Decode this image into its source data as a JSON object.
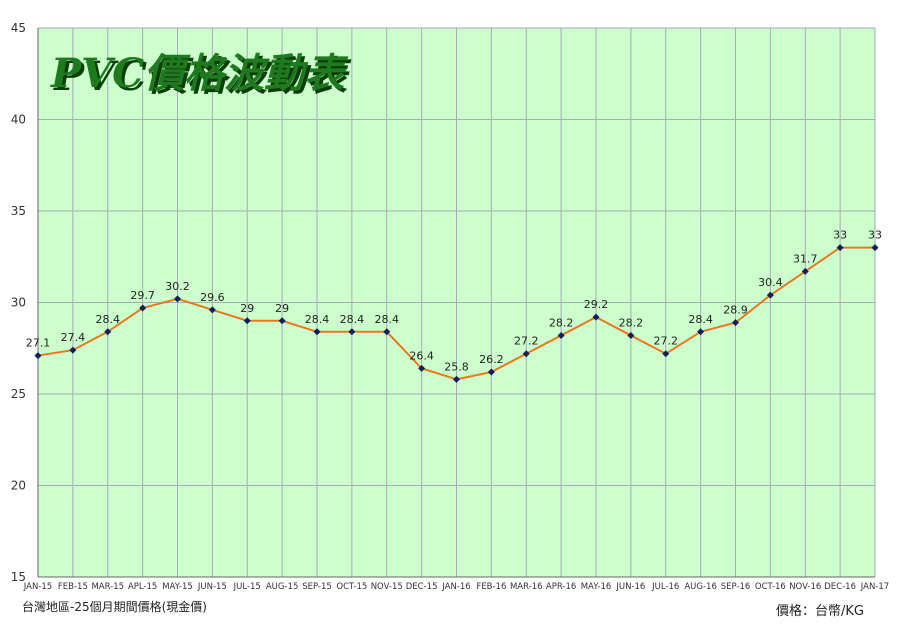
{
  "chart_data": {
    "type": "line",
    "title": "PVC價格波動表",
    "categories": [
      "JAN-15",
      "FEB-15",
      "MAR-15",
      "APL-15",
      "MAY-15",
      "JUN-15",
      "JUL-15",
      "AUG-15",
      "SEP-15",
      "OCT-15",
      "NOV-15",
      "DEC-15",
      "JAN-16",
      "FEB-16",
      "MAR-16",
      "APR-16",
      "MAY-16",
      "JUN-16",
      "JUL-16",
      "AUG-16",
      "SEP-16",
      "OCT-16",
      "NOV-16",
      "DEC-16",
      "JAN-17"
    ],
    "values": [
      27.1,
      27.4,
      28.4,
      29.7,
      30.2,
      29.6,
      29,
      29,
      28.4,
      28.4,
      28.4,
      26.4,
      25.8,
      26.2,
      27.2,
      28.2,
      29.2,
      28.2,
      27.2,
      28.4,
      28.9,
      30.4,
      31.7,
      33,
      33
    ],
    "data_labels": [
      "27.1",
      "27.4",
      "28.4",
      "29.7",
      "30.2",
      "29.6",
      "29",
      "29",
      "28.4",
      "28.4",
      "28.4",
      "26.4",
      "25.8",
      "26.2",
      "27.2",
      "28.2",
      "29.2",
      "28.2",
      "27.2",
      "28.4",
      "28.9",
      "30.4",
      "31.7",
      "33",
      "33"
    ],
    "ylim": [
      15,
      45
    ],
    "yticks": [
      15,
      20,
      25,
      30,
      35,
      40,
      45
    ],
    "grid": true,
    "colors": {
      "plot_bg": "#ccffcc",
      "grid": "#a9a9b8",
      "line": "#e8781e",
      "marker": "#0d1f5c",
      "title": "#1f7a1f"
    }
  },
  "footnotes": {
    "left": "台灣地區-25個月期間價格(現金價)",
    "right": "價格：台幣/KG"
  }
}
